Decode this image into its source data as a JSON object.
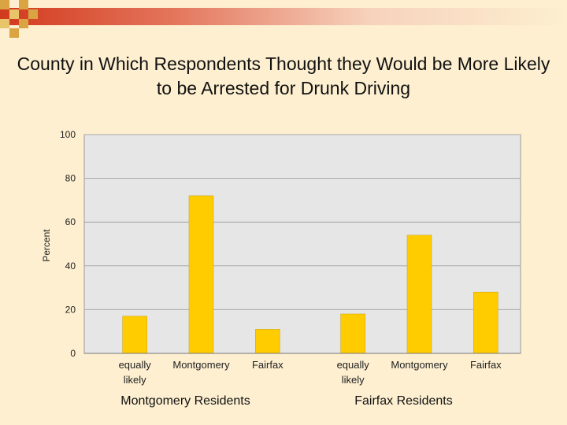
{
  "theme": {
    "accent": "#D23A1E",
    "bar_color": "#FFCC00",
    "plot_bg": "#E6E6E6",
    "page_bg": "#FDEFD0"
  },
  "chart_data": {
    "type": "bar",
    "title": "County in Which Respondents Thought they Would be More Likely to be Arrested for Drunk Driving",
    "xlabel": "",
    "ylabel": "Percent",
    "ylim": [
      0,
      100
    ],
    "yticks": [
      0,
      20,
      40,
      60,
      80,
      100
    ],
    "grid": true,
    "groups": [
      {
        "name": "Montgomery Residents",
        "categories": [
          [
            "equally",
            "likely"
          ],
          [
            "Montgomery"
          ],
          [
            "Fairfax"
          ]
        ],
        "values": [
          17,
          72,
          11
        ]
      },
      {
        "name": "Fairfax Residents",
        "categories": [
          [
            "equally",
            "likely"
          ],
          [
            "Montgomery"
          ],
          [
            "Fairfax"
          ]
        ],
        "values": [
          18,
          54,
          28
        ]
      }
    ]
  }
}
